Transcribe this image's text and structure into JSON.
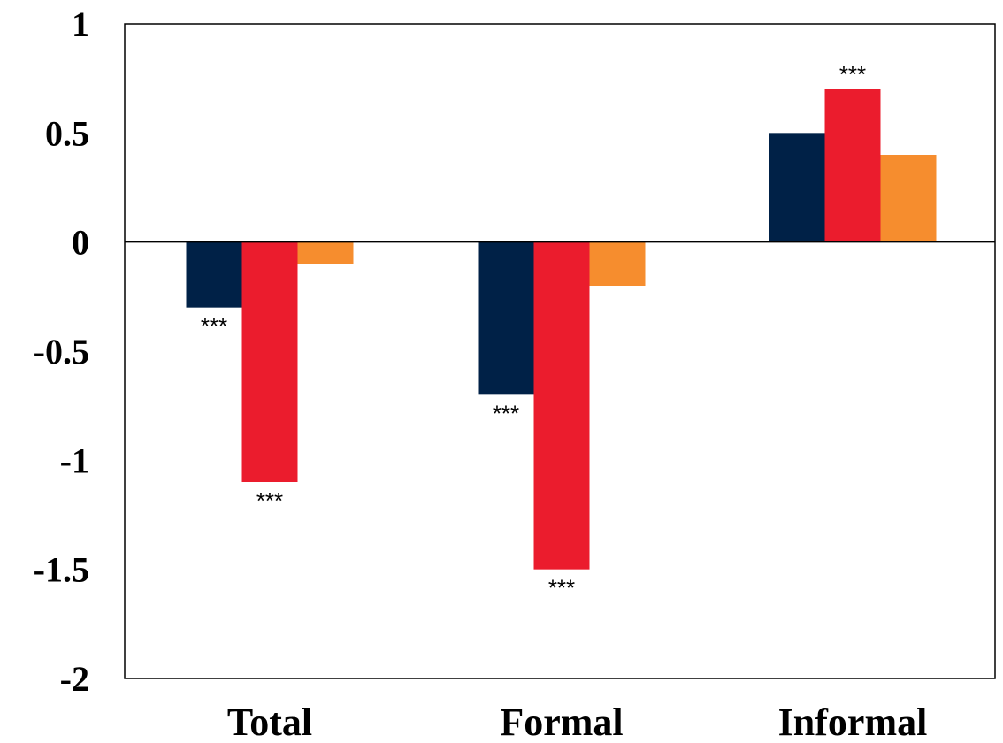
{
  "chart_data": {
    "type": "bar",
    "title": "",
    "xlabel": "",
    "ylabel": "",
    "categories": [
      "Total",
      "Formal",
      "Informal"
    ],
    "ylim": [
      -2,
      1
    ],
    "yticks": [
      1,
      0.5,
      0,
      -0.5,
      -1,
      -1.5,
      -2
    ],
    "ytick_labels": [
      "1",
      "0.5",
      "0",
      "-0.5",
      "-1",
      "-1.5",
      "-2"
    ],
    "grid": false,
    "legend": "none",
    "series": [
      {
        "color": "#002147",
        "values": [
          -0.3,
          -0.7,
          0.5
        ],
        "labels": [
          "***",
          "***",
          ""
        ]
      },
      {
        "color": "#EB1C2D",
        "values": [
          -1.1,
          -1.5,
          0.7
        ],
        "labels": [
          "***",
          "***",
          "***"
        ]
      },
      {
        "color": "#F68D2E",
        "values": [
          -0.1,
          -0.2,
          0.4
        ],
        "labels": [
          "",
          "",
          ""
        ]
      }
    ]
  }
}
